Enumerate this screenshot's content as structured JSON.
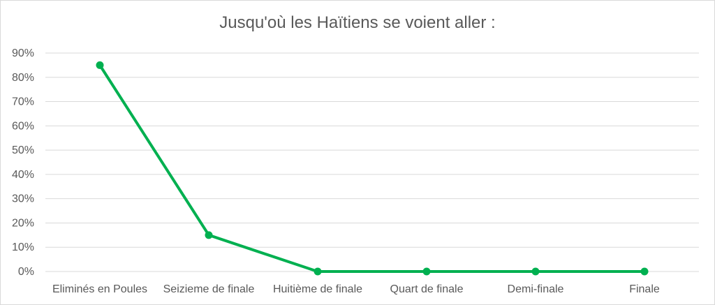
{
  "chart_data": {
    "type": "line",
    "title": "Jusqu'où les Haïtiens se voient aller :",
    "xlabel": "",
    "ylabel": "",
    "categories": [
      "Eliminés en Poules",
      "Seizieme de finale",
      "Huitième de finale",
      "Quart de finale",
      "Demi-finale",
      "Finale"
    ],
    "series": [
      {
        "values": [
          0.85,
          0.15,
          0,
          0,
          0,
          0
        ]
      }
    ],
    "yticks": [
      "0%",
      "10%",
      "20%",
      "30%",
      "40%",
      "50%",
      "60%",
      "70%",
      "80%",
      "90%"
    ],
    "ylim": [
      0,
      0.9
    ],
    "grid": true,
    "legend": "none",
    "colors": {
      "line": "#00b050",
      "grid": "#d9d9d9",
      "text": "#595959"
    }
  }
}
